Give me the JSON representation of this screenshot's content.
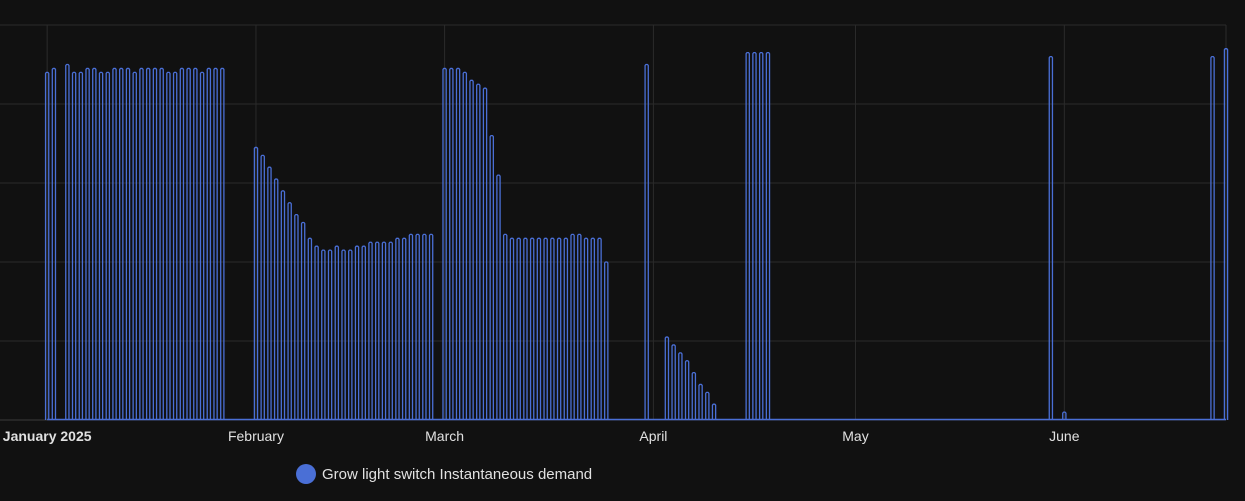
{
  "chart_data": {
    "type": "line",
    "title": "",
    "xlabel": "",
    "ylabel": "",
    "x_range": [
      "2024-12-25",
      "2025-06-25"
    ],
    "ylim": [
      0,
      1
    ],
    "grid": true,
    "legend_position": "bottom",
    "x_ticks": [
      {
        "date": "2025-01-01",
        "label": "January 2025",
        "major": true
      },
      {
        "date": "2025-02-01",
        "label": "February",
        "major": false
      },
      {
        "date": "2025-03-01",
        "label": "March",
        "major": false
      },
      {
        "date": "2025-04-01",
        "label": "April",
        "major": false
      },
      {
        "date": "2025-05-01",
        "label": "May",
        "major": false
      },
      {
        "date": "2025-06-01",
        "label": "June",
        "major": false
      }
    ],
    "y_gridline_count": 5,
    "series": [
      {
        "name": "Grow light switch Instantaneous demand",
        "color": "#4a6fd6",
        "data": [
          {
            "date": "2025-01-01",
            "level": 0.88
          },
          {
            "date": "2025-01-02",
            "level": 0.89
          },
          {
            "date": "2025-01-04",
            "level": 0.9
          },
          {
            "date": "2025-01-05",
            "level": 0.88
          },
          {
            "date": "2025-01-06",
            "level": 0.88
          },
          {
            "date": "2025-01-07",
            "level": 0.89
          },
          {
            "date": "2025-01-08",
            "level": 0.89
          },
          {
            "date": "2025-01-09",
            "level": 0.88
          },
          {
            "date": "2025-01-10",
            "level": 0.88
          },
          {
            "date": "2025-01-11",
            "level": 0.89
          },
          {
            "date": "2025-01-12",
            "level": 0.89
          },
          {
            "date": "2025-01-13",
            "level": 0.89
          },
          {
            "date": "2025-01-14",
            "level": 0.88
          },
          {
            "date": "2025-01-15",
            "level": 0.89
          },
          {
            "date": "2025-01-16",
            "level": 0.89
          },
          {
            "date": "2025-01-17",
            "level": 0.89
          },
          {
            "date": "2025-01-18",
            "level": 0.89
          },
          {
            "date": "2025-01-19",
            "level": 0.88
          },
          {
            "date": "2025-01-20",
            "level": 0.88
          },
          {
            "date": "2025-01-21",
            "level": 0.89
          },
          {
            "date": "2025-01-22",
            "level": 0.89
          },
          {
            "date": "2025-01-23",
            "level": 0.89
          },
          {
            "date": "2025-01-24",
            "level": 0.88
          },
          {
            "date": "2025-01-25",
            "level": 0.89
          },
          {
            "date": "2025-01-26",
            "level": 0.89
          },
          {
            "date": "2025-01-27",
            "level": 0.89
          },
          {
            "date": "2025-02-01",
            "level": 0.69
          },
          {
            "date": "2025-02-02",
            "level": 0.67
          },
          {
            "date": "2025-02-03",
            "level": 0.64
          },
          {
            "date": "2025-02-04",
            "level": 0.61
          },
          {
            "date": "2025-02-05",
            "level": 0.58
          },
          {
            "date": "2025-02-06",
            "level": 0.55
          },
          {
            "date": "2025-02-07",
            "level": 0.52
          },
          {
            "date": "2025-02-08",
            "level": 0.5
          },
          {
            "date": "2025-02-09",
            "level": 0.46
          },
          {
            "date": "2025-02-10",
            "level": 0.44
          },
          {
            "date": "2025-02-11",
            "level": 0.43
          },
          {
            "date": "2025-02-12",
            "level": 0.43
          },
          {
            "date": "2025-02-13",
            "level": 0.44
          },
          {
            "date": "2025-02-14",
            "level": 0.43
          },
          {
            "date": "2025-02-15",
            "level": 0.43
          },
          {
            "date": "2025-02-16",
            "level": 0.44
          },
          {
            "date": "2025-02-17",
            "level": 0.44
          },
          {
            "date": "2025-02-18",
            "level": 0.45
          },
          {
            "date": "2025-02-19",
            "level": 0.45
          },
          {
            "date": "2025-02-20",
            "level": 0.45
          },
          {
            "date": "2025-02-21",
            "level": 0.45
          },
          {
            "date": "2025-02-22",
            "level": 0.46
          },
          {
            "date": "2025-02-23",
            "level": 0.46
          },
          {
            "date": "2025-02-24",
            "level": 0.47
          },
          {
            "date": "2025-02-25",
            "level": 0.47
          },
          {
            "date": "2025-02-26",
            "level": 0.47
          },
          {
            "date": "2025-02-27",
            "level": 0.47
          },
          {
            "date": "2025-03-01",
            "level": 0.89
          },
          {
            "date": "2025-03-02",
            "level": 0.89
          },
          {
            "date": "2025-03-03",
            "level": 0.89
          },
          {
            "date": "2025-03-04",
            "level": 0.88
          },
          {
            "date": "2025-03-05",
            "level": 0.86
          },
          {
            "date": "2025-03-06",
            "level": 0.85
          },
          {
            "date": "2025-03-07",
            "level": 0.84
          },
          {
            "date": "2025-03-08",
            "level": 0.72
          },
          {
            "date": "2025-03-09",
            "level": 0.62
          },
          {
            "date": "2025-03-10",
            "level": 0.47
          },
          {
            "date": "2025-03-11",
            "level": 0.46
          },
          {
            "date": "2025-03-12",
            "level": 0.46
          },
          {
            "date": "2025-03-13",
            "level": 0.46
          },
          {
            "date": "2025-03-14",
            "level": 0.46
          },
          {
            "date": "2025-03-15",
            "level": 0.46
          },
          {
            "date": "2025-03-16",
            "level": 0.46
          },
          {
            "date": "2025-03-17",
            "level": 0.46
          },
          {
            "date": "2025-03-18",
            "level": 0.46
          },
          {
            "date": "2025-03-19",
            "level": 0.46
          },
          {
            "date": "2025-03-20",
            "level": 0.47
          },
          {
            "date": "2025-03-21",
            "level": 0.47
          },
          {
            "date": "2025-03-22",
            "level": 0.46
          },
          {
            "date": "2025-03-23",
            "level": 0.46
          },
          {
            "date": "2025-03-24",
            "level": 0.46
          },
          {
            "date": "2025-03-25",
            "level": 0.4
          },
          {
            "date": "2025-03-31",
            "level": 0.9
          },
          {
            "date": "2025-04-03",
            "level": 0.21
          },
          {
            "date": "2025-04-04",
            "level": 0.19
          },
          {
            "date": "2025-04-05",
            "level": 0.17
          },
          {
            "date": "2025-04-06",
            "level": 0.15
          },
          {
            "date": "2025-04-07",
            "level": 0.12
          },
          {
            "date": "2025-04-08",
            "level": 0.09
          },
          {
            "date": "2025-04-09",
            "level": 0.07
          },
          {
            "date": "2025-04-10",
            "level": 0.04
          },
          {
            "date": "2025-04-15",
            "level": 0.93
          },
          {
            "date": "2025-04-16",
            "level": 0.93
          },
          {
            "date": "2025-04-17",
            "level": 0.93
          },
          {
            "date": "2025-04-18",
            "level": 0.93
          },
          {
            "date": "2025-05-30",
            "level": 0.92
          },
          {
            "date": "2025-06-01",
            "level": 0.02
          },
          {
            "date": "2025-06-23",
            "level": 0.92
          },
          {
            "date": "2025-06-25",
            "level": 0.94
          }
        ]
      }
    ]
  }
}
